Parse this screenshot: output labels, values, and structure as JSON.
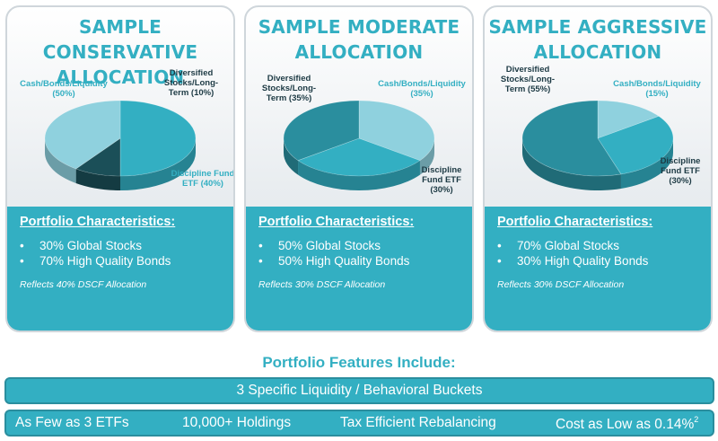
{
  "cards": [
    {
      "title_line1": "SAMPLE CONSERVATIVE",
      "title_line2": "ALLOCATION",
      "chart_data": {
        "type": "pie",
        "slices": [
          {
            "label": "Cash/Bonds/Liquidity",
            "value": 50,
            "display": "(50%)",
            "color": "#33afc2"
          },
          {
            "label": "Diversified Stocks/Long-Term",
            "value": 10,
            "display": "(10%)",
            "color": "#1b4f58"
          },
          {
            "label": "Discipline Fund ETF",
            "value": 40,
            "display": "(40%)",
            "color": "#8fd1de"
          }
        ]
      },
      "labels": {
        "cash": "Cash/Bonds/Liquidity\n(50%)",
        "stocks": "Diversified\nStocks/Long-\nTerm (10%)",
        "etf": "Discipline Fund\nETF (40%)"
      },
      "panel": {
        "heading": "Portfolio Characteristics:",
        "bullets": [
          "30% Global Stocks",
          "70% High Quality Bonds"
        ],
        "note": "Reflects 40% DSCF Allocation"
      }
    },
    {
      "title_line1": "SAMPLE MODERATE",
      "title_line2": "ALLOCATION",
      "chart_data": {
        "type": "pie",
        "slices": [
          {
            "label": "Cash/Bonds/Liquidity",
            "value": 35,
            "display": "(35%)",
            "color": "#8fd1de"
          },
          {
            "label": "Discipline Fund ETF",
            "value": 30,
            "display": "(30%)",
            "color": "#33afc2"
          },
          {
            "label": "Diversified Stocks/Long-Term",
            "value": 35,
            "display": "(35%)",
            "color": "#2a8e9e"
          }
        ]
      },
      "labels": {
        "stocks": "Diversified\nStocks/Long-\nTerm (35%)",
        "cash": "Cash/Bonds/Liquidity\n(35%)",
        "etf": "Discipline\nFund ETF\n(30%)"
      },
      "panel": {
        "heading": "Portfolio Characteristics:",
        "bullets": [
          "50% Global Stocks",
          "50% High Quality Bonds"
        ],
        "note": "Reflects 30% DSCF Allocation"
      }
    },
    {
      "title_line1": "SAMPLE AGGRESSIVE",
      "title_line2": "ALLOCATION",
      "chart_data": {
        "type": "pie",
        "slices": [
          {
            "label": "Cash/Bonds/Liquidity",
            "value": 15,
            "display": "(15%)",
            "color": "#8fd1de"
          },
          {
            "label": "Discipline Fund ETF",
            "value": 30,
            "display": "(30%)",
            "color": "#33afc2"
          },
          {
            "label": "Diversified Stocks/Long-Term",
            "value": 55,
            "display": "(55%)",
            "color": "#2a8e9e"
          }
        ]
      },
      "labels": {
        "stocks": "Diversified\nStocks/Long-\nTerm (55%)",
        "cash": "Cash/Bonds/Liquidity\n(15%)",
        "etf": "Discipline\nFund ETF\n(30%)"
      },
      "panel": {
        "heading": "Portfolio Characteristics:",
        "bullets": [
          "70% Global Stocks",
          "30% High Quality Bonds"
        ],
        "note": "Reflects 30% DSCF Allocation"
      }
    }
  ],
  "features": {
    "title": "Portfolio Features Include:",
    "bar1": "3 Specific Liquidity / Behavioral Buckets",
    "items": [
      "As Few as 3 ETFs",
      "10,000+ Holdings",
      "Tax Efficient Rebalancing",
      "Cost as Low as 0.14%"
    ],
    "footnote": "2"
  },
  "colors": {
    "teal": "#33afc2",
    "light_teal": "#8fd1de",
    "dark_teal": "#2a8e9e",
    "darkest_teal": "#1b4f58"
  }
}
